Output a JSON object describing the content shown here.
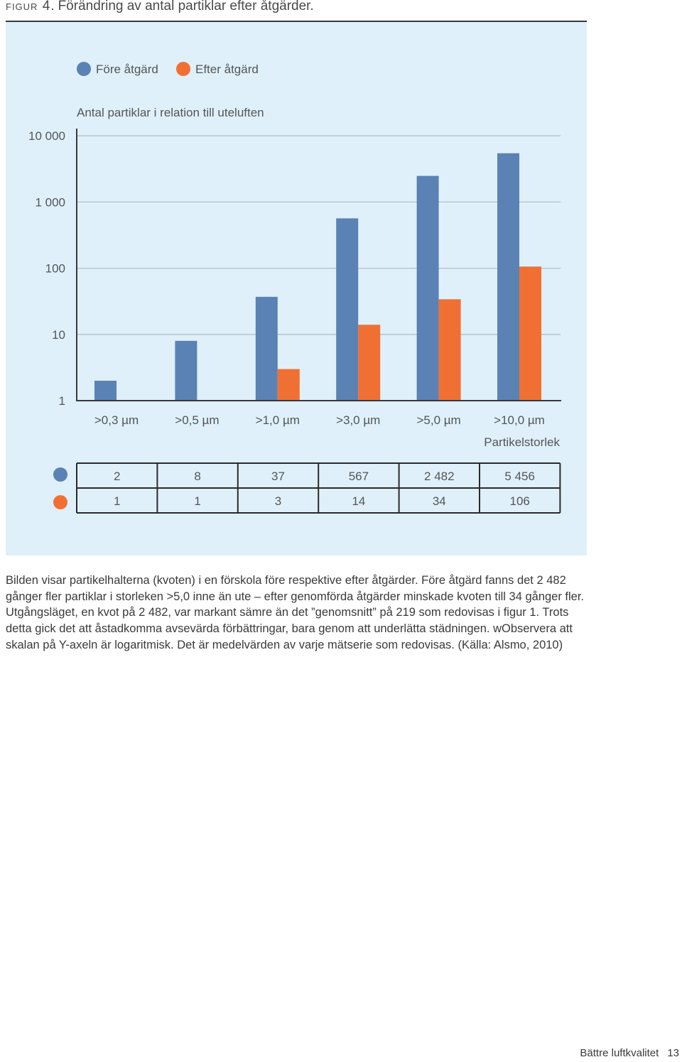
{
  "figure": {
    "label": "figur 4.",
    "title": "Förändring av antal partiklar efter åtgärder."
  },
  "chart_data": {
    "type": "bar",
    "scale": "log",
    "ylabel": "Antal partiklar i relation till uteluften",
    "xlabel": "Partikelstorlek",
    "ylim": [
      1,
      10000
    ],
    "y_ticks": [
      "10 000",
      "1 000",
      "100",
      "10",
      "1"
    ],
    "categories": [
      ">0,3 µm",
      ">0,5 µm",
      ">1,0 µm",
      ">3,0 µm",
      ">5,0 µm",
      ">10,0 µm"
    ],
    "series": [
      {
        "name": "Före åtgärd",
        "color": "#5b82b4",
        "values": [
          2,
          8,
          37,
          567,
          2482,
          5456
        ],
        "labels": [
          "2",
          "8",
          "37",
          "567",
          "2 482",
          "5 456"
        ]
      },
      {
        "name": "Efter åtgärd",
        "color": "#f07034",
        "values": [
          1,
          1,
          3,
          14,
          34,
          106
        ],
        "labels": [
          "1",
          "1",
          "3",
          "14",
          "34",
          "106"
        ]
      }
    ],
    "legend_position": "top-left",
    "grid": true
  },
  "caption": "Bilden visar partikelhalterna (kvoten) i en förskola före respektive efter åtgärder. Före åtgärd fanns det 2 482 gånger fler partiklar i storleken >5,0 inne än ute – efter genomförda åtgärder minskade kvoten till 34 gånger fler. Utgångsläget, en kvot på 2 482, var markant sämre än det ”genomsnitt” på 219 som redovisas i figur 1. Trots detta gick det att åstadkomma avsevärda förbättringar, bara genom att underlätta städningen. wObservera att skalan på Y-axeln är logaritmisk. Det är medelvärden av varje mätserie som redovisas. (Källa: Alsmo, 2010)",
  "footer": {
    "publication": "Bättre luftkvalitet",
    "page_number": "13"
  }
}
